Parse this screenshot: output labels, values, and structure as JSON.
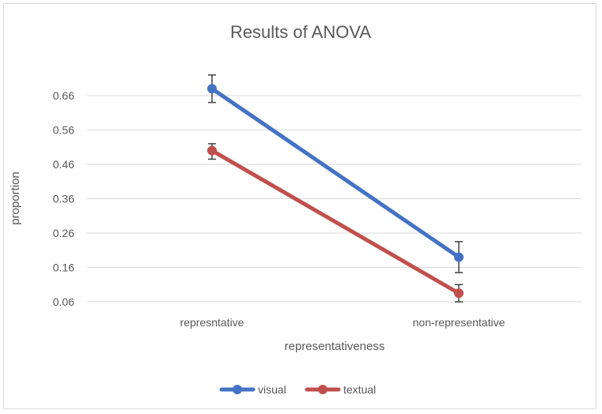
{
  "chart_data": {
    "type": "line",
    "title": "Results of ANOVA",
    "xlabel": "representativeness",
    "ylabel": "proportion",
    "categories": [
      "represntative",
      "non-representative"
    ],
    "y_ticks": [
      "0.06",
      "0.16",
      "0.26",
      "0.36",
      "0.46",
      "0.56",
      "0.66"
    ],
    "ylim": [
      0.06,
      0.66
    ],
    "grid": true,
    "legend_position": "bottom",
    "series": [
      {
        "name": "visual",
        "color": "#4472c4",
        "values": [
          0.68,
          0.19
        ],
        "error_low": [
          0.64,
          0.145
        ],
        "error_high": [
          0.72,
          0.235
        ]
      },
      {
        "name": "textual",
        "color": "#c0504d",
        "values": [
          0.5,
          0.085
        ],
        "error_low": [
          0.475,
          0.06
        ],
        "error_high": [
          0.52,
          0.11
        ]
      }
    ]
  }
}
